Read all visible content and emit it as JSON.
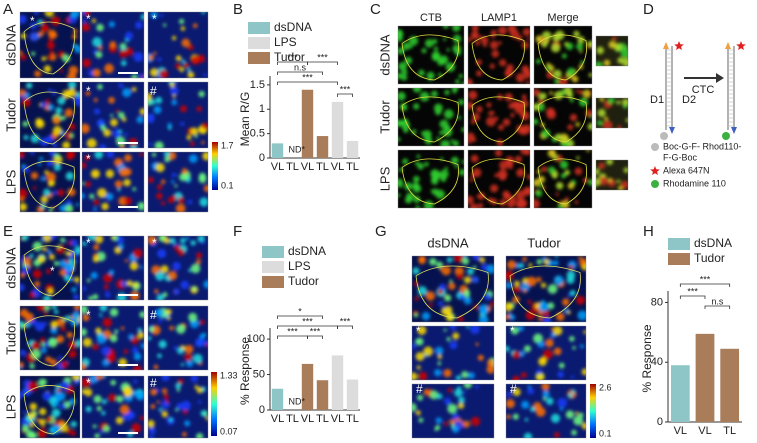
{
  "panel_labels": [
    "A",
    "B",
    "C",
    "D",
    "E",
    "F",
    "G",
    "H"
  ],
  "panel_a": {
    "rows": [
      "dsDNA",
      "Tudor",
      "LPS"
    ],
    "markers": [
      "*",
      "*",
      "*",
      "*",
      "#",
      "*"
    ],
    "colorbar": [
      "1.7",
      "0.1"
    ]
  },
  "panel_c": {
    "columns": [
      "CTB",
      "LAMP1",
      "Merge"
    ],
    "rows": [
      "dsDNA",
      "Tudor",
      "LPS"
    ]
  },
  "panel_d": {
    "strands": [
      "D1",
      "D2"
    ],
    "arrow": "CTC",
    "legend": [
      [
        "Boc-G-F- Rhod110-",
        "F-G-Boc"
      ],
      [
        "Alexa 647N"
      ],
      [
        "Rhodamine 110"
      ]
    ]
  },
  "panel_e": {
    "rows": [
      "dsDNA",
      "Tudor",
      "LPS"
    ],
    "markers": [
      "*",
      "*",
      "*",
      "*",
      "#",
      "*",
      "#"
    ],
    "colorbar": [
      "1.33",
      "0.07"
    ]
  },
  "panel_g": {
    "columns": [
      "dsDNA",
      "Tudor"
    ],
    "markers": [
      "*",
      "*",
      "#",
      "#"
    ],
    "colorbar": [
      "2.6",
      "0.1"
    ]
  },
  "chart_data": [
    {
      "type": "bar",
      "y_label": "Mean R/G",
      "categories": [
        "VL",
        "TL",
        "VL",
        "TL",
        "VL",
        "TL"
      ],
      "series": [
        {
          "name": "dsDNA",
          "color": "#8ec5c6",
          "values": [
            0.3,
            null,
            null,
            null,
            null,
            null
          ]
        },
        {
          "name": "LPS",
          "color": "#dcdcdc",
          "values": [
            null,
            null,
            null,
            null,
            1.15,
            0.35
          ]
        },
        {
          "name": "Tudor",
          "color": "#a97c5a",
          "values": [
            null,
            null,
            1.4,
            0.45,
            null,
            null
          ]
        }
      ],
      "ylim": [
        0,
        1.6
      ],
      "yticks": [
        0,
        0.5,
        1,
        1.5
      ],
      "annotations": [
        "ND*",
        "***",
        "***",
        "n.s",
        "***",
        "***"
      ]
    },
    {
      "type": "bar",
      "y_label": "% Response",
      "categories": [
        "VL",
        "TL",
        "VL",
        "TL",
        "VL",
        "TL"
      ],
      "series": [
        {
          "name": "dsDNA",
          "color": "#8ec5c6",
          "values": [
            30,
            null,
            null,
            null,
            null,
            null
          ]
        },
        {
          "name": "LPS",
          "color": "#dcdcdc",
          "values": [
            null,
            null,
            null,
            null,
            77,
            43
          ]
        },
        {
          "name": "Tudor",
          "color": "#a97c5a",
          "values": [
            null,
            null,
            65,
            42,
            null,
            null
          ]
        }
      ],
      "ylim": [
        0,
        110
      ],
      "yticks": [
        0,
        50,
        100
      ],
      "annotations": [
        "ND*",
        "*",
        "***",
        "***",
        "***",
        "***"
      ]
    },
    {
      "type": "bar",
      "y_label": "% Response",
      "categories": [
        "VL",
        "VL",
        "TL"
      ],
      "series": [
        {
          "name": "dsDNA",
          "color": "#8ec5c6",
          "values": [
            38,
            null,
            null
          ]
        },
        {
          "name": "Tudor",
          "color": "#a97c5a",
          "values": [
            null,
            59,
            49
          ]
        }
      ],
      "ylim": [
        0,
        85
      ],
      "yticks": [
        0,
        40,
        80
      ],
      "annotations": [
        "***",
        "***",
        "n.s"
      ]
    }
  ]
}
